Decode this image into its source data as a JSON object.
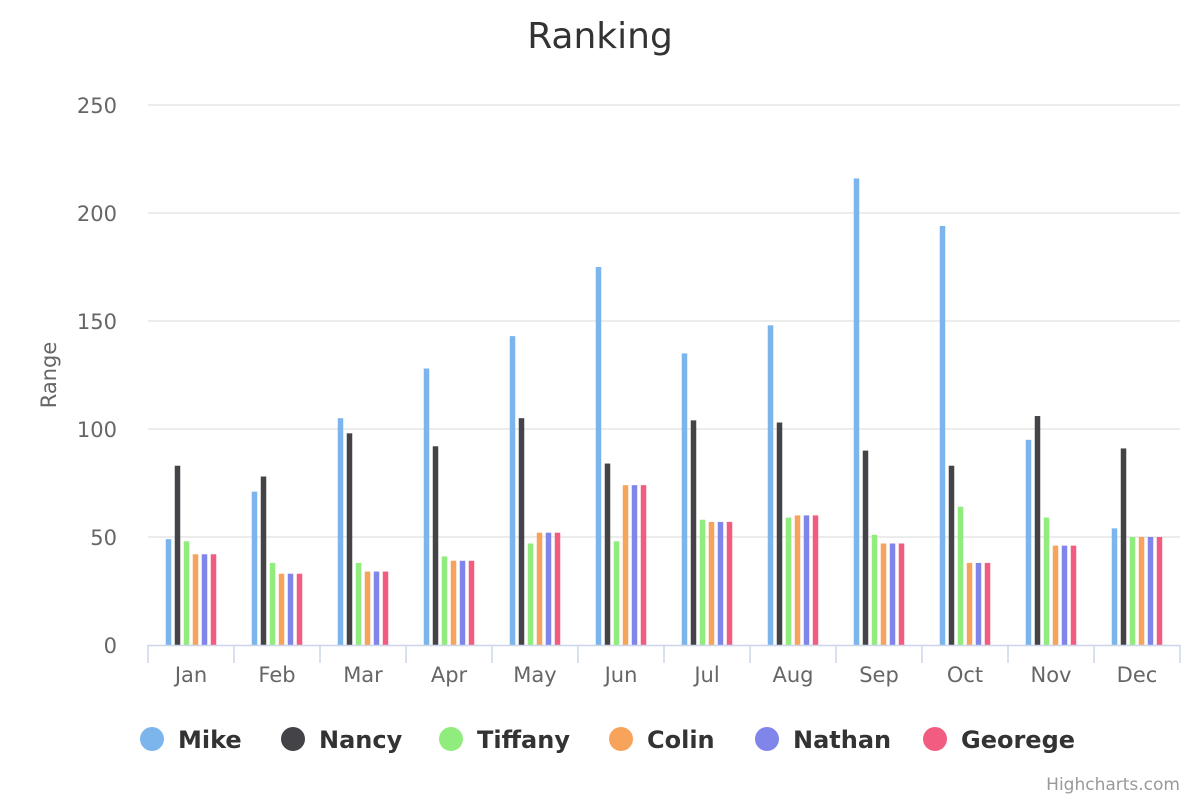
{
  "chart_data": {
    "type": "bar",
    "title": "Ranking",
    "xlabel": "",
    "ylabel": "Range",
    "ylim": [
      0,
      250
    ],
    "yticks": [
      0,
      50,
      100,
      150,
      200,
      250
    ],
    "grid": true,
    "legend_position": "bottom",
    "categories": [
      "Jan",
      "Feb",
      "Mar",
      "Apr",
      "May",
      "Jun",
      "Jul",
      "Aug",
      "Sep",
      "Oct",
      "Nov",
      "Dec"
    ],
    "series": [
      {
        "name": "Mike",
        "color": "#7cb5ec",
        "values": [
          49,
          71,
          105,
          128,
          143,
          175,
          135,
          148,
          216,
          194,
          95,
          54
        ]
      },
      {
        "name": "Nancy",
        "color": "#434348",
        "values": [
          83,
          78,
          98,
          92,
          105,
          84,
          104,
          103,
          90,
          83,
          106,
          91
        ]
      },
      {
        "name": "Tiffany",
        "color": "#90ed7d",
        "values": [
          48,
          38,
          38,
          41,
          47,
          48,
          58,
          59,
          51,
          64,
          59,
          50
        ]
      },
      {
        "name": "Colin",
        "color": "#f7a35c",
        "values": [
          42,
          33,
          34,
          39,
          52,
          74,
          57,
          60,
          47,
          38,
          46,
          50
        ]
      },
      {
        "name": "Nathan",
        "color": "#8085e9",
        "values": [
          42,
          33,
          34,
          39,
          52,
          74,
          57,
          60,
          47,
          38,
          46,
          50
        ]
      },
      {
        "name": "Georege",
        "color": "#f15c80",
        "values": [
          42,
          33,
          34,
          39,
          52,
          74,
          57,
          60,
          47,
          38,
          46,
          50
        ]
      }
    ]
  },
  "credits": "Highcharts.com"
}
